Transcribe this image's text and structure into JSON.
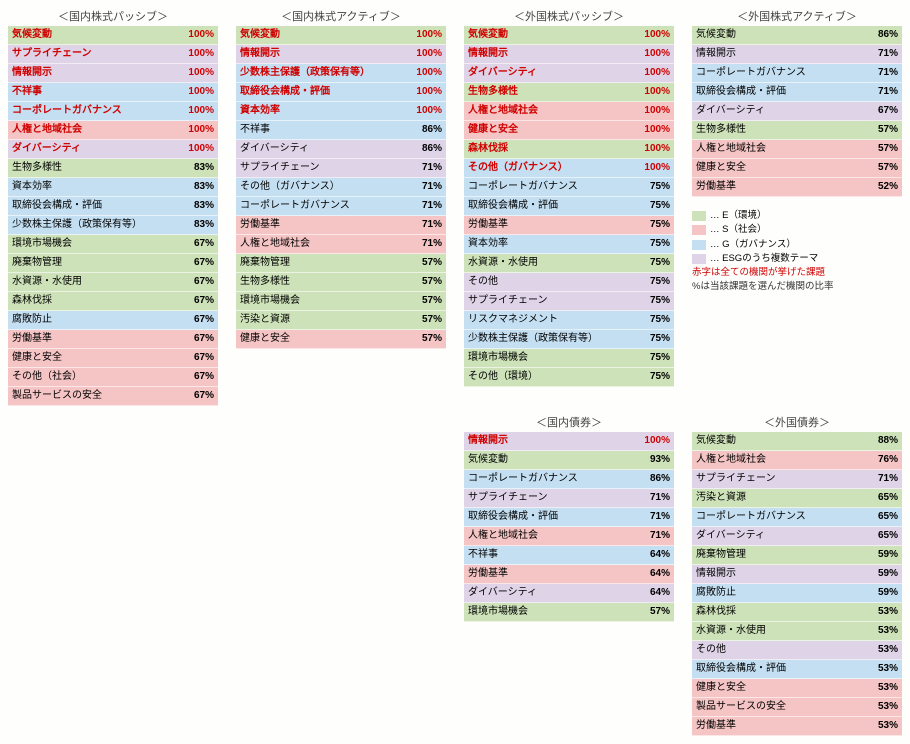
{
  "colors": {
    "E": "#cde2b8",
    "S": "#f5c4c4",
    "G": "#c4dff2",
    "M": "#ded3e7"
  },
  "legend": {
    "items": [
      {
        "key": "E",
        "text": "… E（環境）"
      },
      {
        "key": "S",
        "text": "… S（社会）"
      },
      {
        "key": "G",
        "text": "… G（ガバナンス）"
      },
      {
        "key": "M",
        "text": "… ESGのうち複数テーマ"
      }
    ],
    "note_red": "赤字は全ての機関が挙げた課題",
    "note_pct": "%は当該課題を選んだ機関の比率"
  },
  "panels": [
    {
      "id": "dom-eq-passive",
      "title": "＜国内株式パッシブ＞",
      "rows": [
        {
          "label": "気候変動",
          "pct": "100%",
          "cat": "E",
          "hot": true
        },
        {
          "label": "サプライチェーン",
          "pct": "100%",
          "cat": "M",
          "hot": true
        },
        {
          "label": "情報開示",
          "pct": "100%",
          "cat": "M",
          "hot": true
        },
        {
          "label": "不祥事",
          "pct": "100%",
          "cat": "G",
          "hot": true
        },
        {
          "label": "コーポレートガバナンス",
          "pct": "100%",
          "cat": "G",
          "hot": true
        },
        {
          "label": "人権と地域社会",
          "pct": "100%",
          "cat": "S",
          "hot": true
        },
        {
          "label": "ダイバーシティ",
          "pct": "100%",
          "cat": "M",
          "hot": true
        },
        {
          "label": "生物多様性",
          "pct": "83%",
          "cat": "E"
        },
        {
          "label": "資本効率",
          "pct": "83%",
          "cat": "G"
        },
        {
          "label": "取締役会構成・評価",
          "pct": "83%",
          "cat": "G"
        },
        {
          "label": "少数株主保護（政策保有等）",
          "pct": "83%",
          "cat": "G"
        },
        {
          "label": "環境市場機会",
          "pct": "67%",
          "cat": "E"
        },
        {
          "label": "廃棄物管理",
          "pct": "67%",
          "cat": "E"
        },
        {
          "label": "水資源・水使用",
          "pct": "67%",
          "cat": "E"
        },
        {
          "label": "森林伐採",
          "pct": "67%",
          "cat": "E"
        },
        {
          "label": "腐敗防止",
          "pct": "67%",
          "cat": "G"
        },
        {
          "label": "労働基準",
          "pct": "67%",
          "cat": "S"
        },
        {
          "label": "健康と安全",
          "pct": "67%",
          "cat": "S"
        },
        {
          "label": "その他（社会）",
          "pct": "67%",
          "cat": "S"
        },
        {
          "label": "製品サービスの安全",
          "pct": "67%",
          "cat": "S"
        }
      ]
    },
    {
      "id": "dom-eq-active",
      "title": "＜国内株式アクティブ＞",
      "rows": [
        {
          "label": "気候変動",
          "pct": "100%",
          "cat": "E",
          "hot": true
        },
        {
          "label": "情報開示",
          "pct": "100%",
          "cat": "M",
          "hot": true
        },
        {
          "label": "少数株主保護（政策保有等）",
          "pct": "100%",
          "cat": "G",
          "hot": true
        },
        {
          "label": "取締役会構成・評価",
          "pct": "100%",
          "cat": "G",
          "hot": true
        },
        {
          "label": "資本効率",
          "pct": "100%",
          "cat": "G",
          "hot": true
        },
        {
          "label": "不祥事",
          "pct": "86%",
          "cat": "G"
        },
        {
          "label": "ダイバーシティ",
          "pct": "86%",
          "cat": "M"
        },
        {
          "label": "サプライチェーン",
          "pct": "71%",
          "cat": "M"
        },
        {
          "label": "その他（ガバナンス）",
          "pct": "71%",
          "cat": "G"
        },
        {
          "label": "コーポレートガバナンス",
          "pct": "71%",
          "cat": "G"
        },
        {
          "label": "労働基準",
          "pct": "71%",
          "cat": "S"
        },
        {
          "label": "人権と地域社会",
          "pct": "71%",
          "cat": "S"
        },
        {
          "label": "廃棄物管理",
          "pct": "57%",
          "cat": "E"
        },
        {
          "label": "生物多様性",
          "pct": "57%",
          "cat": "E"
        },
        {
          "label": "環境市場機会",
          "pct": "57%",
          "cat": "E"
        },
        {
          "label": "汚染と資源",
          "pct": "57%",
          "cat": "E"
        },
        {
          "label": "健康と安全",
          "pct": "57%",
          "cat": "S"
        }
      ]
    },
    {
      "id": "fgn-eq-passive",
      "title": "＜外国株式パッシブ＞",
      "rows": [
        {
          "label": "気候変動",
          "pct": "100%",
          "cat": "E",
          "hot": true
        },
        {
          "label": "情報開示",
          "pct": "100%",
          "cat": "M",
          "hot": true
        },
        {
          "label": "ダイバーシティ",
          "pct": "100%",
          "cat": "M",
          "hot": true
        },
        {
          "label": "生物多様性",
          "pct": "100%",
          "cat": "E",
          "hot": true
        },
        {
          "label": "人権と地域社会",
          "pct": "100%",
          "cat": "S",
          "hot": true
        },
        {
          "label": "健康と安全",
          "pct": "100%",
          "cat": "S",
          "hot": true
        },
        {
          "label": "森林伐採",
          "pct": "100%",
          "cat": "E",
          "hot": true
        },
        {
          "label": "その他（ガバナンス）",
          "pct": "100%",
          "cat": "G",
          "hot": true
        },
        {
          "label": "コーポレートガバナンス",
          "pct": "75%",
          "cat": "G"
        },
        {
          "label": "取締役会構成・評価",
          "pct": "75%",
          "cat": "G"
        },
        {
          "label": "労働基準",
          "pct": "75%",
          "cat": "S"
        },
        {
          "label": "資本効率",
          "pct": "75%",
          "cat": "G"
        },
        {
          "label": "水資源・水使用",
          "pct": "75%",
          "cat": "E"
        },
        {
          "label": "その他",
          "pct": "75%",
          "cat": "M"
        },
        {
          "label": "サプライチェーン",
          "pct": "75%",
          "cat": "M"
        },
        {
          "label": "リスクマネジメント",
          "pct": "75%",
          "cat": "G"
        },
        {
          "label": "少数株主保護（政策保有等）",
          "pct": "75%",
          "cat": "G"
        },
        {
          "label": "環境市場機会",
          "pct": "75%",
          "cat": "E"
        },
        {
          "label": "その他（環境）",
          "pct": "75%",
          "cat": "E"
        }
      ]
    },
    {
      "id": "fgn-eq-active",
      "title": "＜外国株式アクティブ＞",
      "rows": [
        {
          "label": "気候変動",
          "pct": "86%",
          "cat": "E"
        },
        {
          "label": "情報開示",
          "pct": "71%",
          "cat": "M"
        },
        {
          "label": "コーポレートガバナンス",
          "pct": "71%",
          "cat": "G"
        },
        {
          "label": "取締役会構成・評価",
          "pct": "71%",
          "cat": "G"
        },
        {
          "label": "ダイバーシティ",
          "pct": "67%",
          "cat": "M"
        },
        {
          "label": "生物多様性",
          "pct": "57%",
          "cat": "E"
        },
        {
          "label": "人権と地域社会",
          "pct": "57%",
          "cat": "S"
        },
        {
          "label": "健康と安全",
          "pct": "57%",
          "cat": "S"
        },
        {
          "label": "労働基準",
          "pct": "52%",
          "cat": "S"
        }
      ]
    },
    {
      "id": "dom-bond",
      "title": "＜国内債券＞",
      "rows": [
        {
          "label": "情報開示",
          "pct": "100%",
          "cat": "M",
          "hot": true
        },
        {
          "label": "気候変動",
          "pct": "93%",
          "cat": "E"
        },
        {
          "label": "コーポレートガバナンス",
          "pct": "86%",
          "cat": "G"
        },
        {
          "label": "サプライチェーン",
          "pct": "71%",
          "cat": "M"
        },
        {
          "label": "取締役会構成・評価",
          "pct": "71%",
          "cat": "G"
        },
        {
          "label": "人権と地域社会",
          "pct": "71%",
          "cat": "S"
        },
        {
          "label": "不祥事",
          "pct": "64%",
          "cat": "G"
        },
        {
          "label": "労働基準",
          "pct": "64%",
          "cat": "S"
        },
        {
          "label": "ダイバーシティ",
          "pct": "64%",
          "cat": "M"
        },
        {
          "label": "環境市場機会",
          "pct": "57%",
          "cat": "E"
        }
      ]
    },
    {
      "id": "fgn-bond",
      "title": "＜外国債券＞",
      "rows": [
        {
          "label": "気候変動",
          "pct": "88%",
          "cat": "E"
        },
        {
          "label": "人権と地域社会",
          "pct": "76%",
          "cat": "S"
        },
        {
          "label": "サプライチェーン",
          "pct": "71%",
          "cat": "M"
        },
        {
          "label": "汚染と資源",
          "pct": "65%",
          "cat": "E"
        },
        {
          "label": "コーポレートガバナンス",
          "pct": "65%",
          "cat": "G"
        },
        {
          "label": "ダイバーシティ",
          "pct": "65%",
          "cat": "M"
        },
        {
          "label": "廃棄物管理",
          "pct": "59%",
          "cat": "E"
        },
        {
          "label": "情報開示",
          "pct": "59%",
          "cat": "M"
        },
        {
          "label": "腐敗防止",
          "pct": "59%",
          "cat": "G"
        },
        {
          "label": "森林伐採",
          "pct": "53%",
          "cat": "E"
        },
        {
          "label": "水資源・水使用",
          "pct": "53%",
          "cat": "E"
        },
        {
          "label": "その他",
          "pct": "53%",
          "cat": "M"
        },
        {
          "label": "取締役会構成・評価",
          "pct": "53%",
          "cat": "G"
        },
        {
          "label": "健康と安全",
          "pct": "53%",
          "cat": "S"
        },
        {
          "label": "製品サービスの安全",
          "pct": "53%",
          "cat": "S"
        },
        {
          "label": "労働基準",
          "pct": "53%",
          "cat": "S"
        }
      ]
    }
  ]
}
